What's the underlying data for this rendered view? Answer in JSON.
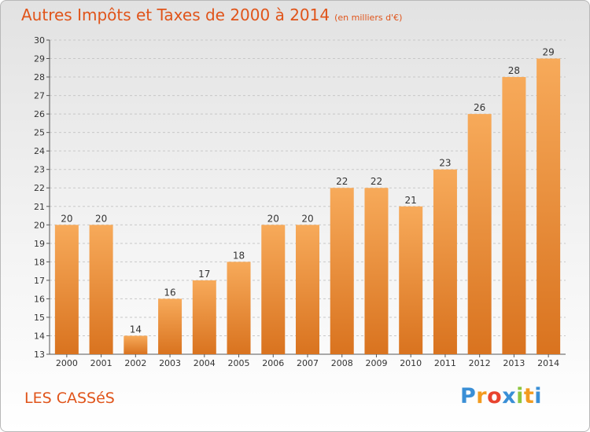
{
  "title": "Autres Impôts et Taxes de 2000 à 2014",
  "title_unit": "(en milliers d'€)",
  "town": "LES CASSéS",
  "logo": {
    "letters": [
      "P",
      "r",
      "o",
      "x",
      "i",
      "t",
      "i"
    ],
    "colors": [
      "#3a8fd6",
      "#f29b1f",
      "#e8432e",
      "#3a8fd6",
      "#8dc63f",
      "#f29b1f",
      "#3a8fd6"
    ]
  },
  "colors": {
    "accent": "#e0541a",
    "bar_light": "#f7aa5a",
    "bar_dark": "#d9731f",
    "grid": "#c8c8c8"
  },
  "chart_data": {
    "type": "bar",
    "title": "Autres Impôts et Taxes de 2000 à 2014",
    "xlabel": "",
    "ylabel": "",
    "ylim": [
      13,
      30
    ],
    "yticks": [
      13,
      14,
      15,
      16,
      17,
      18,
      19,
      20,
      21,
      22,
      23,
      24,
      25,
      26,
      27,
      28,
      29,
      30
    ],
    "grid": true,
    "categories": [
      "2000",
      "2001",
      "2002",
      "2003",
      "2004",
      "2005",
      "2006",
      "2007",
      "2008",
      "2009",
      "2010",
      "2011",
      "2012",
      "2013",
      "2014"
    ],
    "values": [
      20,
      20,
      14,
      16,
      17,
      18,
      20,
      20,
      22,
      22,
      21,
      23,
      26,
      28,
      29
    ]
  }
}
